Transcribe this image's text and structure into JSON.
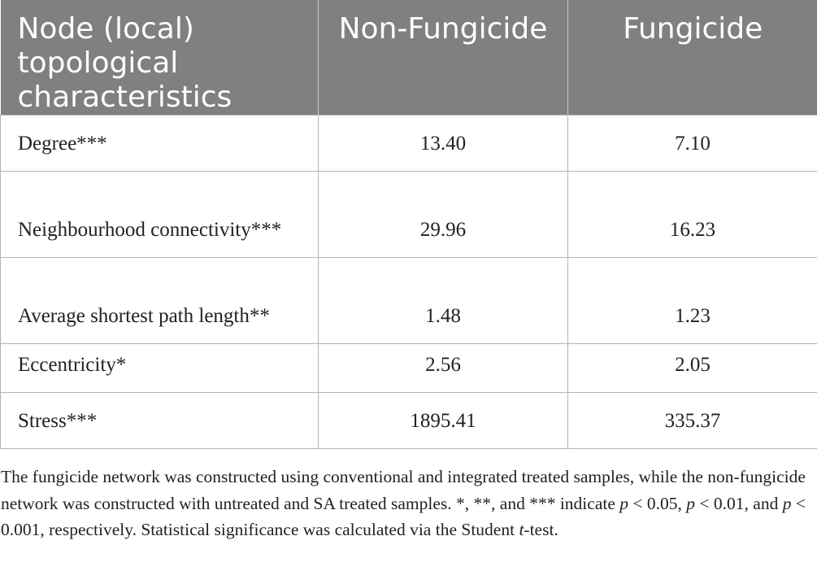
{
  "table": {
    "headers": [
      "Node (local) topological characteristics",
      "Non-Fungicide",
      "Fungicide"
    ],
    "rows": [
      {
        "label": "Degree***",
        "non_fungicide": "13.40",
        "fungicide": "7.10"
      },
      {
        "label": "Neighbourhood connectivity***",
        "non_fungicide": "29.96",
        "fungicide": "16.23"
      },
      {
        "label": "Average shortest path length**",
        "non_fungicide": "1.48",
        "fungicide": "1.23"
      },
      {
        "label": "Eccentricity*",
        "non_fungicide": "2.56",
        "fungicide": "2.05"
      },
      {
        "label": "Stress***",
        "non_fungicide": "1895.41",
        "fungicide": "335.37"
      }
    ]
  },
  "footnote": {
    "part1": "The fungicide network was constructed using conventional and integrated treated samples, while the non-fungicide network was constructed with untreated and SA treated samples. *, **, and *** indicate ",
    "p1_var": "p",
    "p1_rest": " < 0.05, ",
    "p2_var": "p",
    "p2_rest": " < 0.01, and ",
    "p3_var": "p",
    "p3_rest": " < 0.001, respectively. Statistical significance was calculated via the Student ",
    "t_var": "t",
    "end": "-test."
  }
}
